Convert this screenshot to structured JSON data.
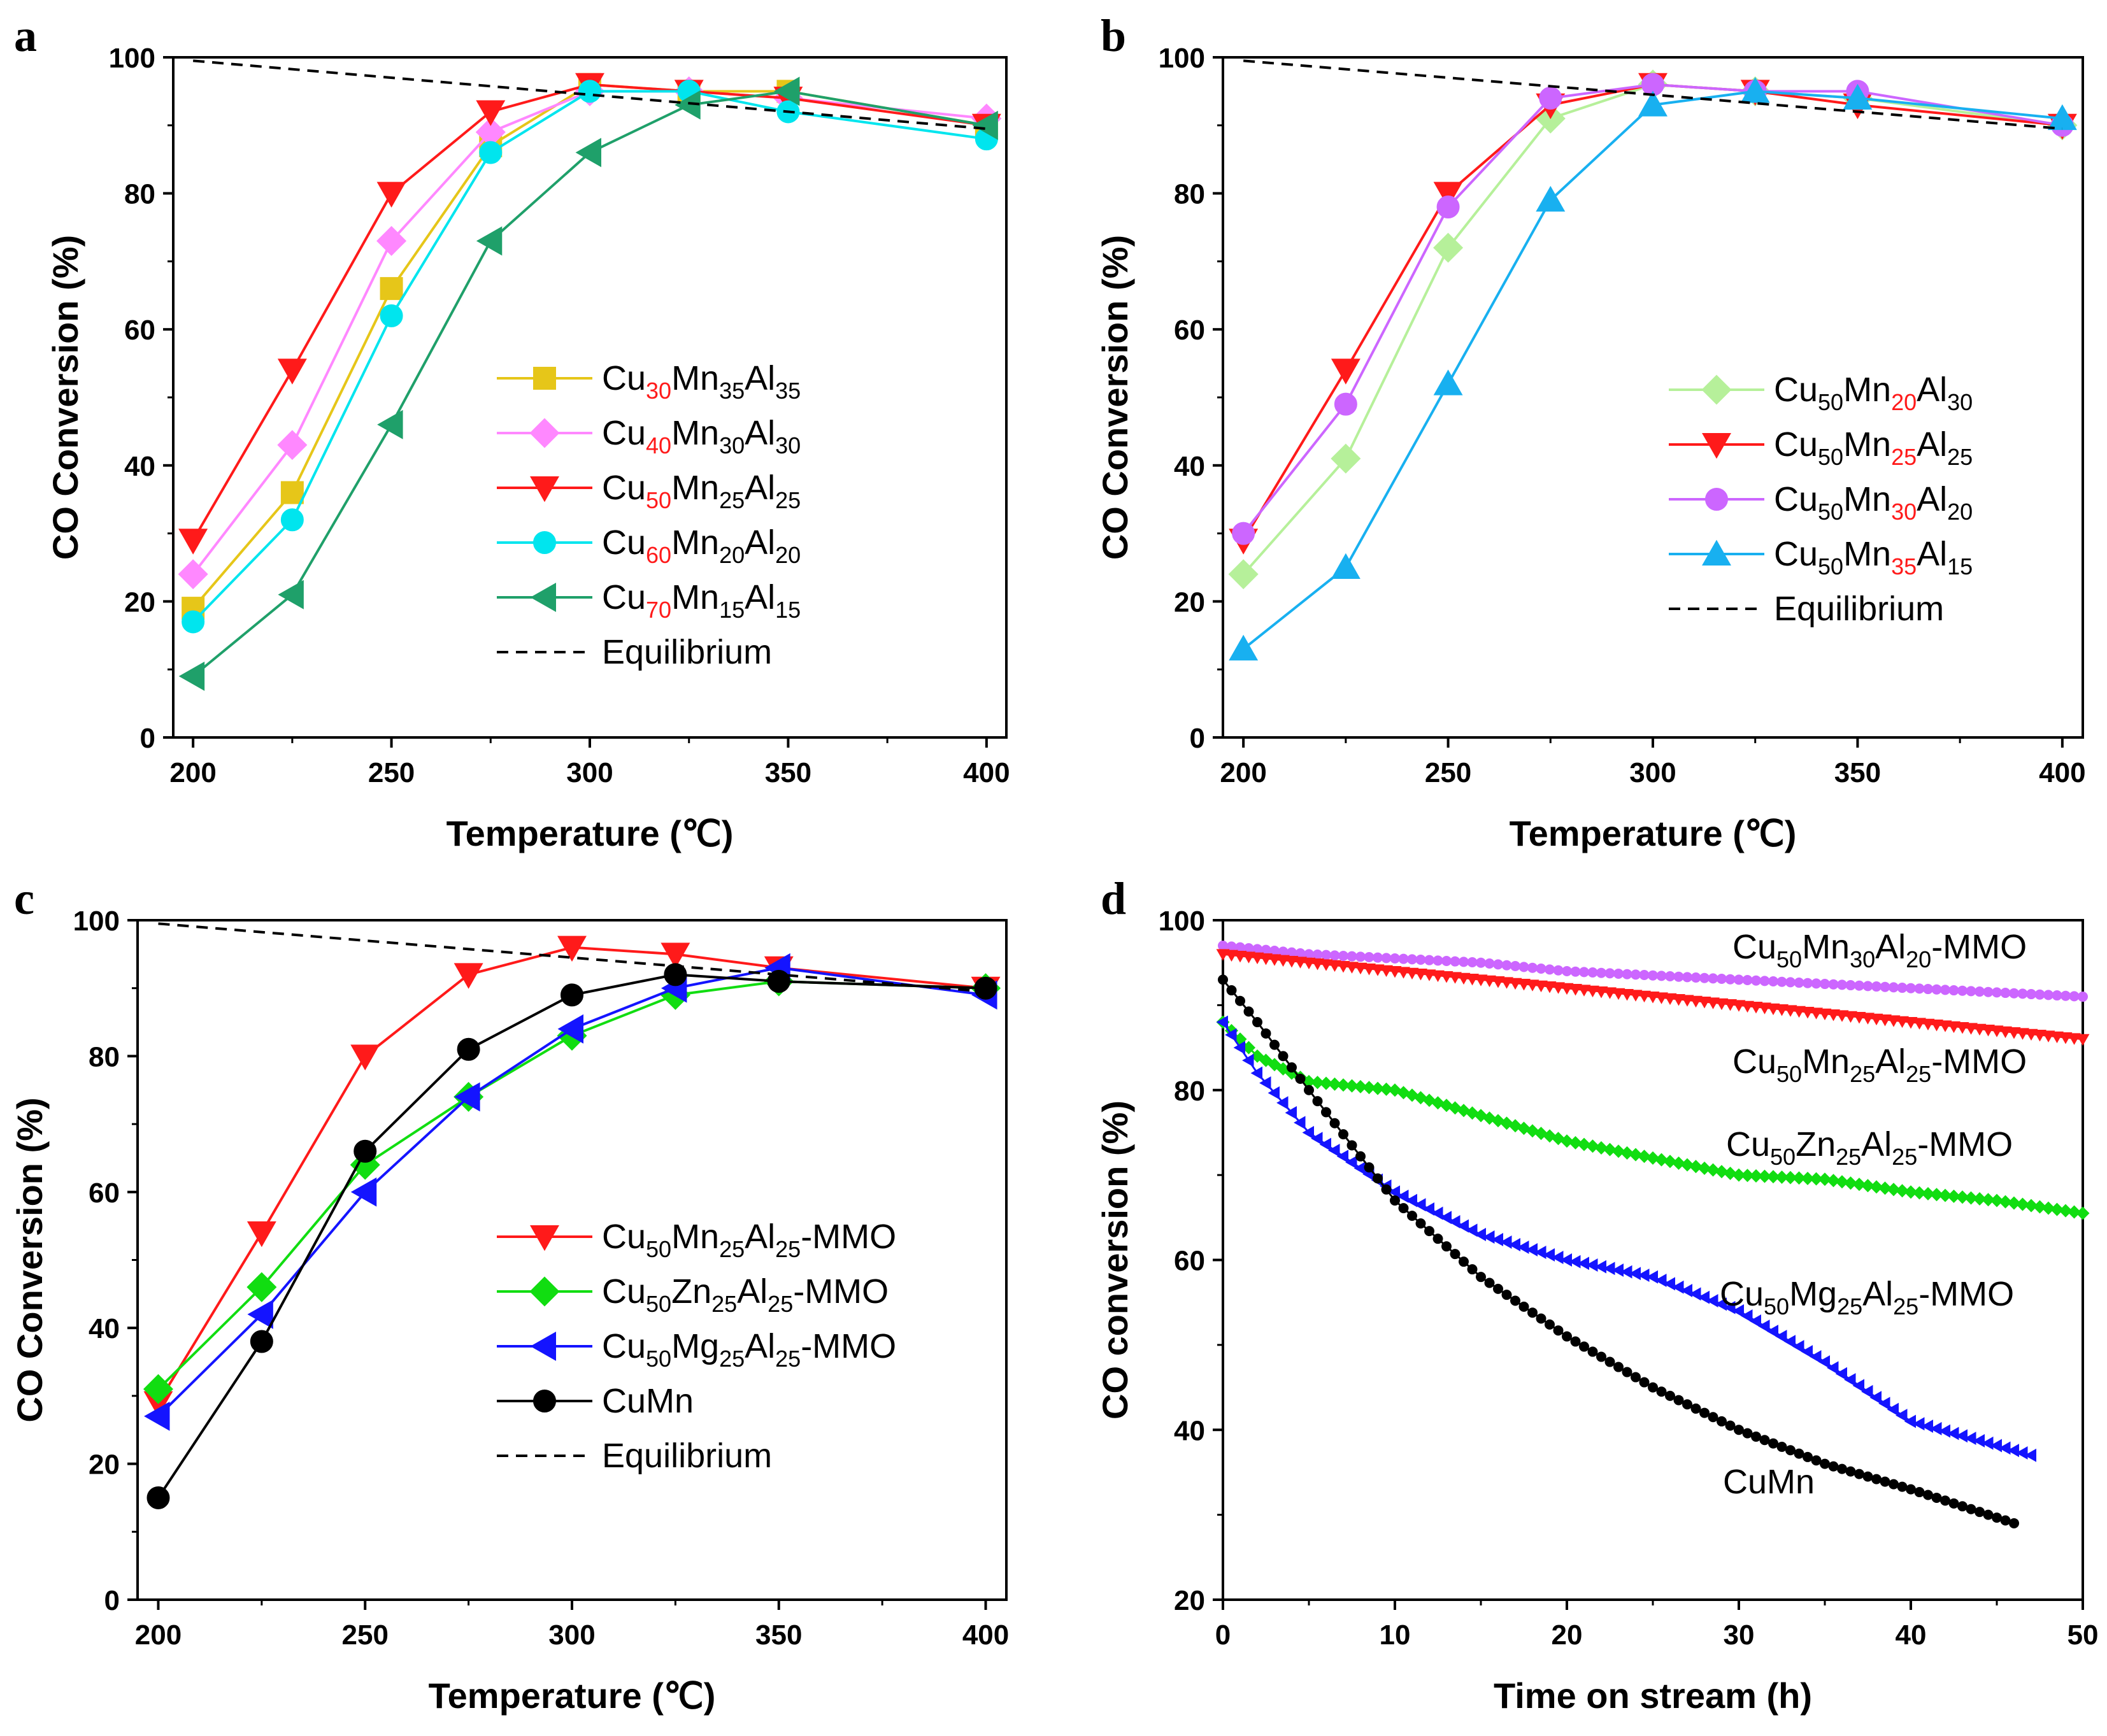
{
  "chart_data": [
    {
      "panel": "a",
      "type": "line",
      "xlabel": "Temperature (℃)",
      "ylabel": "CO Conversion (%)",
      "xlim": [
        195,
        405
      ],
      "ylim": [
        0,
        100
      ],
      "xticks": [
        "200",
        "250",
        "300",
        "350",
        "400"
      ],
      "yticks": [
        "0",
        "20",
        "40",
        "60",
        "80",
        "100"
      ],
      "legend_position": "center-right",
      "x": [
        200,
        225,
        250,
        275,
        300,
        325,
        350,
        400
      ],
      "series": [
        {
          "name": "Cu30Mn35Al35",
          "label": [
            [
              "Cu",
              ""
            ],
            [
              "30",
              "sub-red"
            ],
            [
              "Mn",
              ""
            ],
            [
              "35",
              "sub"
            ],
            [
              "Al",
              ""
            ],
            [
              "35",
              "sub"
            ]
          ],
          "color": "#E6C619",
          "marker": "square",
          "values": [
            19,
            36,
            66,
            87,
            96,
            95,
            95,
            90
          ]
        },
        {
          "name": "Cu40Mn30Al30",
          "label": [
            [
              "Cu",
              ""
            ],
            [
              "40",
              "sub-red"
            ],
            [
              "Mn",
              ""
            ],
            [
              "30",
              "sub"
            ],
            [
              "Al",
              ""
            ],
            [
              "30",
              "sub"
            ]
          ],
          "color": "#FF88FF",
          "marker": "diamond",
          "values": [
            24,
            43,
            73,
            89,
            95,
            95,
            94,
            91
          ]
        },
        {
          "name": "Cu50Mn25Al25",
          "label": [
            [
              "Cu",
              ""
            ],
            [
              "50",
              "sub-red"
            ],
            [
              "Mn",
              ""
            ],
            [
              "25",
              "sub"
            ],
            [
              "Al",
              ""
            ],
            [
              "25",
              "sub"
            ]
          ],
          "color": "#FF1A1A",
          "marker": "triangle-down",
          "values": [
            29,
            54,
            80,
            92,
            96,
            95,
            94,
            90
          ]
        },
        {
          "name": "Cu60Mn20Al20",
          "label": [
            [
              "Cu",
              ""
            ],
            [
              "60",
              "sub-red"
            ],
            [
              "Mn",
              ""
            ],
            [
              "20",
              "sub"
            ],
            [
              "Al",
              ""
            ],
            [
              "20",
              "sub"
            ]
          ],
          "color": "#00E5EE",
          "marker": "circle",
          "values": [
            17,
            32,
            62,
            86,
            95,
            95,
            92,
            88
          ]
        },
        {
          "name": "Cu70Mn15Al15",
          "label": [
            [
              "Cu",
              ""
            ],
            [
              "70",
              "sub-red"
            ],
            [
              "Mn",
              ""
            ],
            [
              "15",
              "sub"
            ],
            [
              "Al",
              ""
            ],
            [
              "15",
              "sub"
            ]
          ],
          "color": "#1FA06A",
          "marker": "triangle-left",
          "values": [
            9,
            21,
            46,
            73,
            86,
            93,
            95,
            90
          ]
        },
        {
          "name": "Equilibrium",
          "label": [
            [
              "Equilibrium",
              ""
            ]
          ],
          "color": "#000000",
          "dash": true,
          "x": [
            200,
            400
          ],
          "values": [
            99.5,
            89.5
          ]
        }
      ]
    },
    {
      "panel": "b",
      "type": "line",
      "xlabel": "Temperature (℃)",
      "ylabel": "CO Conversion (%)",
      "xlim": [
        195,
        405
      ],
      "ylim": [
        0,
        100
      ],
      "xticks": [
        "200",
        "250",
        "300",
        "350",
        "400"
      ],
      "yticks": [
        "0",
        "20",
        "40",
        "60",
        "80",
        "100"
      ],
      "legend_position": "center-right",
      "x": [
        200,
        225,
        250,
        275,
        300,
        325,
        350,
        400
      ],
      "series": [
        {
          "name": "Cu50Mn20Al30",
          "label": [
            [
              "Cu",
              ""
            ],
            [
              "50",
              "sub"
            ],
            [
              "Mn",
              ""
            ],
            [
              "20",
              "sub-red"
            ],
            [
              "Al",
              ""
            ],
            [
              "30",
              "sub"
            ]
          ],
          "color": "#B6F09A",
          "marker": "diamond",
          "values": [
            24,
            41,
            72,
            91,
            96,
            95,
            94,
            90
          ]
        },
        {
          "name": "Cu50Mn25Al25",
          "label": [
            [
              "Cu",
              ""
            ],
            [
              "50",
              "sub"
            ],
            [
              "Mn",
              ""
            ],
            [
              "25",
              "sub-red"
            ],
            [
              "Al",
              ""
            ],
            [
              "25",
              "sub"
            ]
          ],
          "color": "#FF1A1A",
          "marker": "triangle-down",
          "values": [
            29,
            54,
            80,
            93,
            96,
            95,
            93,
            90
          ]
        },
        {
          "name": "Cu50Mn30Al20",
          "label": [
            [
              "Cu",
              ""
            ],
            [
              "50",
              "sub"
            ],
            [
              "Mn",
              ""
            ],
            [
              "30",
              "sub-red"
            ],
            [
              "Al",
              ""
            ],
            [
              "20",
              "sub"
            ]
          ],
          "color": "#CC66FF",
          "marker": "circle",
          "values": [
            30,
            49,
            78,
            94,
            96,
            95,
            95,
            90
          ]
        },
        {
          "name": "Cu50Mn35Al15",
          "label": [
            [
              "Cu",
              ""
            ],
            [
              "50",
              "sub"
            ],
            [
              "Mn",
              ""
            ],
            [
              "35",
              "sub-red"
            ],
            [
              "Al",
              ""
            ],
            [
              "15",
              "sub"
            ]
          ],
          "color": "#18B0F0",
          "marker": "triangle-up",
          "values": [
            13,
            25,
            52,
            79,
            93,
            95,
            94,
            91
          ]
        },
        {
          "name": "Equilibrium",
          "label": [
            [
              "Equilibrium",
              ""
            ]
          ],
          "color": "#000000",
          "dash": true,
          "x": [
            200,
            400
          ],
          "values": [
            99.5,
            89.5
          ]
        }
      ]
    },
    {
      "panel": "c",
      "type": "line",
      "xlabel": "Temperature (℃)",
      "ylabel": "CO Conversion (%)",
      "xlim": [
        195,
        405
      ],
      "ylim": [
        0,
        100
      ],
      "xticks": [
        "200",
        "250",
        "300",
        "350",
        "400"
      ],
      "yticks": [
        "0",
        "20",
        "40",
        "60",
        "80",
        "100"
      ],
      "legend_position": "center-right",
      "x": [
        200,
        225,
        250,
        275,
        300,
        325,
        350,
        400
      ],
      "series": [
        {
          "name": "Cu50Mn25Al25-MMO",
          "label": [
            [
              "Cu",
              ""
            ],
            [
              "50",
              "sub"
            ],
            [
              "Mn",
              ""
            ],
            [
              "25",
              "sub"
            ],
            [
              "Al",
              ""
            ],
            [
              "25",
              "sub"
            ],
            [
              "-MMO",
              ""
            ]
          ],
          "color": "#FF1A1A",
          "marker": "triangle-down",
          "values": [
            29,
            54,
            80,
            92,
            96,
            95,
            93,
            90
          ]
        },
        {
          "name": "Cu50Zn25Al25-MMO",
          "label": [
            [
              "Cu",
              ""
            ],
            [
              "50",
              "sub"
            ],
            [
              "Zn",
              ""
            ],
            [
              "25",
              "sub"
            ],
            [
              "Al",
              ""
            ],
            [
              "25",
              "sub"
            ],
            [
              "-MMO",
              ""
            ]
          ],
          "color": "#11DD11",
          "marker": "diamond",
          "values": [
            31,
            46,
            64,
            74,
            83,
            89,
            91,
            90
          ]
        },
        {
          "name": "Cu50Mg25Al25-MMO",
          "label": [
            [
              "Cu",
              ""
            ],
            [
              "50",
              "sub"
            ],
            [
              "Mg",
              ""
            ],
            [
              "25",
              "sub"
            ],
            [
              "Al",
              ""
            ],
            [
              "25",
              "sub"
            ],
            [
              "-MMO",
              ""
            ]
          ],
          "color": "#1414FF",
          "marker": "triangle-left",
          "values": [
            27,
            42,
            60,
            74,
            84,
            90,
            93,
            89
          ]
        },
        {
          "name": "CuMn",
          "label": [
            [
              "CuMn",
              ""
            ]
          ],
          "color": "#000000",
          "marker": "circle",
          "values": [
            15,
            38,
            66,
            81,
            89,
            92,
            91,
            90
          ]
        },
        {
          "name": "Equilibrium",
          "label": [
            [
              "Equilibrium",
              ""
            ]
          ],
          "color": "#000000",
          "dash": true,
          "x": [
            200,
            400
          ],
          "values": [
            99.5,
            89.5
          ]
        }
      ]
    },
    {
      "panel": "d",
      "type": "line",
      "xlabel": "Time on stream (h)",
      "ylabel": "CO conversion (%)",
      "xlim": [
        0,
        50
      ],
      "ylim": [
        20,
        100
      ],
      "xticks": [
        "0",
        "10",
        "20",
        "30",
        "40",
        "50"
      ],
      "yticks": [
        "20",
        "40",
        "60",
        "80",
        "100"
      ],
      "legend_position": "inline labels",
      "series": [
        {
          "name": "Cu50Mn30Al20-MMO",
          "label": [
            [
              "Cu",
              ""
            ],
            [
              "50",
              "sub"
            ],
            [
              "Mn",
              ""
            ],
            [
              "30",
              "sub"
            ],
            [
              "Al",
              ""
            ],
            [
              "20",
              "sub"
            ],
            [
              "-MMO",
              ""
            ]
          ],
          "color": "#CC66FF",
          "marker": "circle",
          "x": [
            0,
            5,
            10,
            15,
            20,
            25,
            30,
            35,
            40,
            45,
            50
          ],
          "values": [
            97,
            96,
            95.5,
            95,
            94,
            93.5,
            93,
            92.5,
            92,
            91.5,
            91
          ]
        },
        {
          "name": "Cu50Mn25Al25-MMO",
          "label": [
            [
              "Cu",
              ""
            ],
            [
              "50",
              "sub"
            ],
            [
              "Mn",
              ""
            ],
            [
              "25",
              "sub"
            ],
            [
              "Al",
              ""
            ],
            [
              "25",
              "sub"
            ],
            [
              "-MMO",
              ""
            ]
          ],
          "color": "#FF1A1A",
          "marker": "triangle-down",
          "x": [
            0,
            5,
            10,
            15,
            20,
            25,
            30,
            35,
            40,
            45,
            50
          ],
          "values": [
            96,
            95,
            94,
            93,
            92,
            91,
            90,
            89,
            88,
            87,
            86
          ]
        },
        {
          "name": "Cu50Zn25Al25-MMO",
          "label": [
            [
              "Cu",
              ""
            ],
            [
              "50",
              "sub"
            ],
            [
              "Zn",
              ""
            ],
            [
              "25",
              "sub"
            ],
            [
              "Al",
              ""
            ],
            [
              "25",
              "sub"
            ],
            [
              "-MMO",
              ""
            ]
          ],
          "color": "#11DD11",
          "marker": "diamond",
          "x": [
            0,
            2,
            5,
            10,
            15,
            20,
            25,
            30,
            35,
            40,
            45,
            50
          ],
          "values": [
            88,
            84,
            81,
            80,
            77,
            74,
            72,
            70,
            69.5,
            68,
            67,
            65.5
          ]
        },
        {
          "name": "Cu50Mg25Al25-MMO",
          "label": [
            [
              "Cu",
              ""
            ],
            [
              "50",
              "sub"
            ],
            [
              "Mg",
              ""
            ],
            [
              "25",
              "sub"
            ],
            [
              "Al",
              ""
            ],
            [
              "25",
              "sub"
            ],
            [
              "-MMO",
              ""
            ]
          ],
          "color": "#1414FF",
          "marker": "triangle-left",
          "x": [
            0,
            2,
            5,
            10,
            15,
            20,
            25,
            30,
            35,
            40,
            47
          ],
          "values": [
            88,
            82,
            75,
            68,
            63,
            60,
            58,
            54,
            48,
            41,
            37
          ]
        },
        {
          "name": "CuMn",
          "label": [
            [
              "CuMn",
              ""
            ]
          ],
          "color": "#000000",
          "marker": "circle",
          "x": [
            0,
            2,
            5,
            10,
            15,
            20,
            25,
            30,
            35,
            40,
            46
          ],
          "values": [
            93,
            88,
            80,
            67,
            58,
            51,
            45,
            40,
            36,
            33,
            29
          ]
        }
      ]
    }
  ]
}
